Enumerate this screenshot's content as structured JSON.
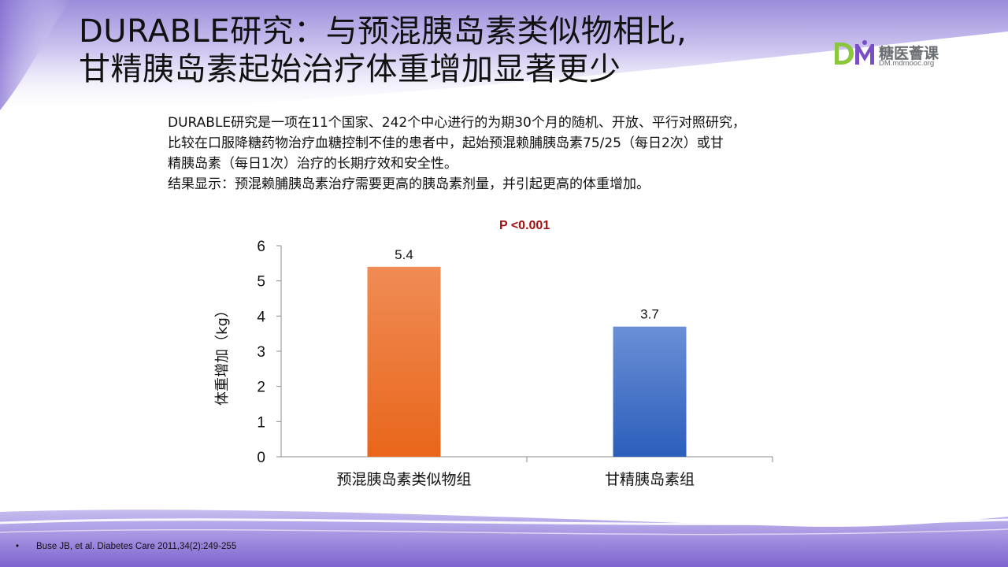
{
  "slide": {
    "title_lines": [
      "DURABLE研究：与预混胰岛素类似物相比,",
      "甘精胰岛素起始治疗体重增加显著更少"
    ],
    "intro_lines": [
      "DURABLE研究是一项在11个国家、242个中心进行的为期30个月的随机、开放、平行对照研究，",
      "比较在口服降糖药物治疗血糖控制不佳的患者中，起始预混赖脯胰岛素75/25（每日2次）或甘",
      "精胰岛素（每日1次）治疗的长期疗效和安全性。",
      "结果显示：预混赖脯胰岛素治疗需要更高的胰岛素剂量，并引起更高的体重增加。"
    ],
    "reference_bullet": "•",
    "reference": "Buse JB, et al. Diabetes Care 2011,34(2):249-255"
  },
  "logo": {
    "mark": "DM",
    "name": "糖医薈课",
    "url": "DM.mdmooc.org",
    "colors": {
      "d": "#8cc63f",
      "m": "#7a4fc6"
    }
  },
  "colors": {
    "orange_top": "#f08c55",
    "orange_bottom": "#e9661b",
    "blue_top": "#6a8fd6",
    "blue_bottom": "#2c5ebb",
    "purple_wave": "#8e74d6",
    "p_value": "#a50f0f"
  },
  "chart_data": {
    "type": "bar",
    "categories": [
      "预混胰岛素类似物组",
      "甘精胰岛素组"
    ],
    "values": [
      5.4,
      3.7
    ],
    "data_labels": [
      "5.4",
      "3.7"
    ],
    "bar_colors": [
      "orange",
      "blue"
    ],
    "ylabel": "体重增加（kg）",
    "xlabel": "",
    "ylim": [
      0,
      6
    ],
    "yticks": [
      0,
      1,
      2,
      3,
      4,
      5,
      6
    ],
    "annotation": "P <0.001",
    "grid": false,
    "legend": "none"
  }
}
